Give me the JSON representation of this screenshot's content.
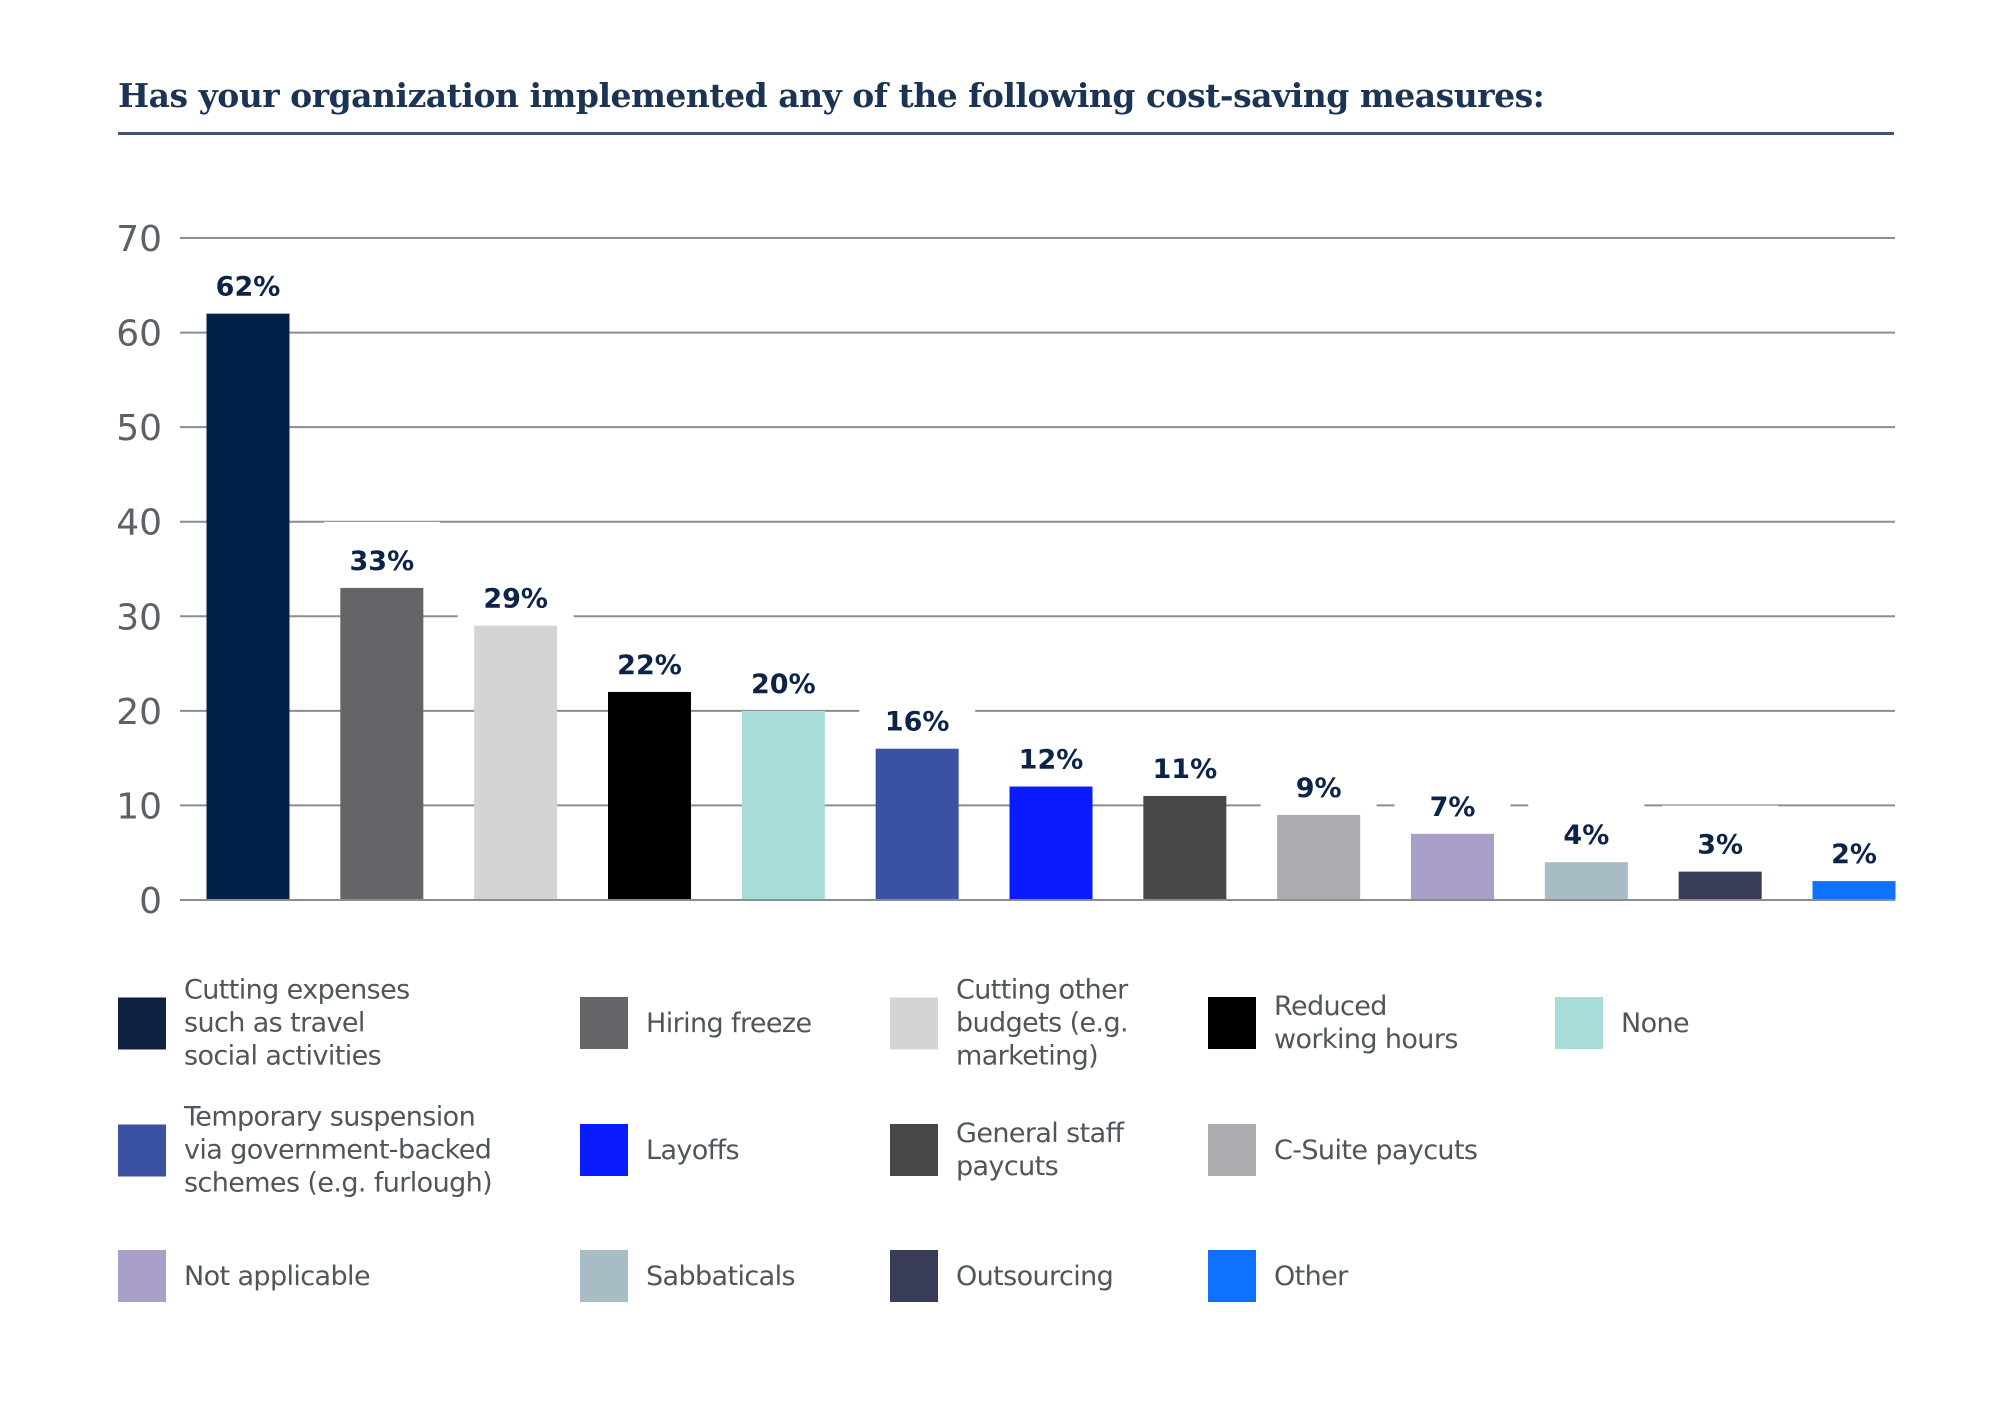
{
  "title": "Has your organization implemented any of the following cost-saving measures:",
  "chart_data": {
    "type": "bar",
    "title": "Has your organization implemented any of the following cost-saving measures:",
    "xlabel": "",
    "ylabel": "",
    "ylim": [
      0,
      70
    ],
    "yticks": [
      0,
      10,
      20,
      30,
      40,
      50,
      60,
      70
    ],
    "grid": true,
    "legend_position": "bottom",
    "categories": [
      "Cutting expenses such as travel social activities",
      "Hiring freeze",
      "Cutting other budgets (e.g. marketing)",
      "Reduced working hours",
      "None",
      "Temporary suspension via government-backed schemes (e.g. furlough)",
      "Layoffs",
      "General staff paycuts",
      "C-Suite paycuts",
      "Not applicable",
      "Sabbaticals",
      "Outsourcing",
      "Other"
    ],
    "values": [
      62,
      33,
      29,
      22,
      20,
      16,
      12,
      11,
      9,
      7,
      4,
      3,
      2
    ],
    "data_labels": [
      "62%",
      "33%",
      "29%",
      "22%",
      "20%",
      "16%",
      "12%",
      "11%",
      "9%",
      "7%",
      "4%",
      "3%",
      "2%"
    ],
    "colors": [
      "#012148",
      "#646568",
      "#d4d4d2",
      "#000000",
      "#a7dcd9",
      "#3b52a3",
      "#0a1cff",
      "#474749",
      "#abacaf",
      "#a99fc9",
      "#a7bcc4",
      "#393c58",
      "#0f71ff"
    ]
  },
  "legend": {
    "items": [
      {
        "label": "Cutting expenses\nsuch as travel\nsocial activities",
        "color": "#0f2244"
      },
      {
        "label": "Hiring freeze",
        "color": "#646568"
      },
      {
        "label": "Cutting other\nbudgets (e.g.\nmarketing)",
        "color": "#d4d4d2"
      },
      {
        "label": "Reduced\nworking hours",
        "color": "#000000"
      },
      {
        "label": "None",
        "color": "#a7dcd9"
      },
      {
        "label": "Temporary suspension\nvia government-backed\nschemes (e.g. furlough)",
        "color": "#3b52a3"
      },
      {
        "label": "Layoffs",
        "color": "#0a1cff"
      },
      {
        "label": "General staff\npaycuts",
        "color": "#474749"
      },
      {
        "label": "C-Suite paycuts",
        "color": "#abacaf"
      },
      {
        "label": "Not applicable",
        "color": "#a99fc9"
      },
      {
        "label": "Sabbaticals",
        "color": "#a7bcc4"
      },
      {
        "label": "Outsourcing",
        "color": "#393c58"
      },
      {
        "label": "Other",
        "color": "#0f71ff"
      }
    ]
  }
}
